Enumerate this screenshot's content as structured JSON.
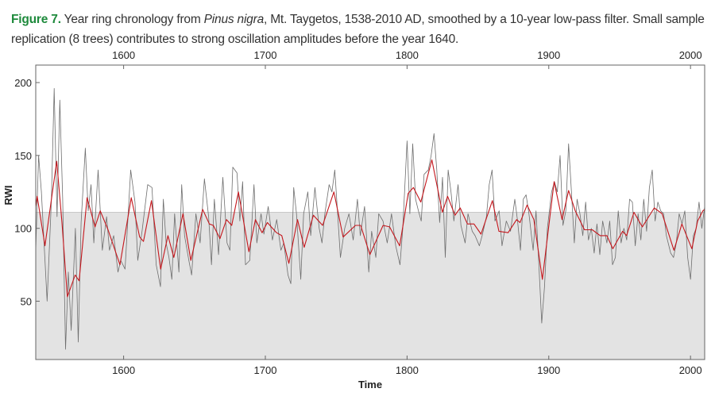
{
  "caption": {
    "figure_label": "Figure 7.",
    "text_before_species": " Year ring chronology from ",
    "species": "Pinus nigra",
    "text_after_species": ", Mt. Taygetos, 1538-2010 AD, smoothed by a 10-year low-pass filter. Small sample replication (8 trees) contributes to strong oscillation amplitudes before the year 1640."
  },
  "chart_data": {
    "type": "line",
    "title": "",
    "xlabel": "Time",
    "ylabel": "RWI",
    "xlim": [
      1538,
      2010
    ],
    "ylim": [
      10,
      212
    ],
    "x_ticks": [
      1600,
      1700,
      1800,
      1900,
      2000
    ],
    "x_tick_labels": [
      "1600",
      "1700",
      "1800",
      "1900",
      "2000"
    ],
    "y_ticks": [
      50,
      100,
      150,
      200
    ],
    "y_tick_labels": [
      "50",
      "100",
      "150",
      "200"
    ],
    "grid": false,
    "legend": "none",
    "band_upper_value": 111,
    "colors": {
      "raw": "#6e6e6e",
      "smoothed": "#c4161c",
      "band": "#e3e3e3",
      "caption_label": "#1e8a3c"
    },
    "series": [
      {
        "name": "raw",
        "x": [
          1538,
          1540,
          1542,
          1546,
          1549,
          1551,
          1553,
          1555,
          1557,
          1559,
          1561,
          1563,
          1566,
          1568,
          1570,
          1573,
          1575,
          1577,
          1579,
          1582,
          1585,
          1588,
          1590,
          1593,
          1596,
          1598,
          1601,
          1605,
          1608,
          1610,
          1613,
          1617,
          1620,
          1623,
          1626,
          1628,
          1630,
          1632,
          1634,
          1636,
          1639,
          1641,
          1643,
          1646,
          1648,
          1651,
          1654,
          1657,
          1660,
          1662,
          1664,
          1667,
          1670,
          1673,
          1675,
          1677,
          1680,
          1682,
          1684,
          1686,
          1689,
          1692,
          1694,
          1697,
          1699,
          1702,
          1705,
          1708,
          1711,
          1713,
          1716,
          1718,
          1720,
          1722,
          1725,
          1727,
          1730,
          1732,
          1735,
          1738,
          1740,
          1742,
          1745,
          1747,
          1749,
          1751,
          1753,
          1756,
          1759,
          1762,
          1765,
          1767,
          1770,
          1773,
          1775,
          1778,
          1780,
          1783,
          1786,
          1789,
          1792,
          1795,
          1797,
          1800,
          1802,
          1804,
          1806,
          1808,
          1810,
          1812,
          1815,
          1817,
          1819,
          1821,
          1823,
          1825,
          1827,
          1829,
          1831,
          1833,
          1836,
          1838,
          1841,
          1843,
          1846,
          1848,
          1851,
          1853,
          1856,
          1858,
          1860,
          1862,
          1865,
          1867,
          1870,
          1873,
          1876,
          1878,
          1880,
          1882,
          1884,
          1886,
          1889,
          1891,
          1893,
          1895,
          1897,
          1899,
          1902,
          1904,
          1906,
          1908,
          1910,
          1912,
          1914,
          1916,
          1918,
          1920,
          1922,
          1924,
          1926,
          1928,
          1930,
          1932,
          1934,
          1936,
          1938,
          1941,
          1943,
          1945,
          1947,
          1949,
          1951,
          1953,
          1955,
          1957,
          1959,
          1961,
          1963,
          1965,
          1967,
          1969,
          1971,
          1973,
          1975,
          1977,
          1979,
          1981,
          1983,
          1986,
          1988,
          1990,
          1992,
          1994,
          1996,
          1998,
          2000,
          2002,
          2004,
          2006,
          2008,
          2010
        ],
        "values": [
          85,
          150,
          125,
          50,
          118,
          196,
          108,
          188,
          120,
          17,
          70,
          30,
          100,
          22,
          104,
          155,
          112,
          130,
          90,
          140,
          85,
          108,
          85,
          95,
          70,
          78,
          72,
          140,
          118,
          78,
          98,
          130,
          128,
          75,
          60,
          120,
          90,
          80,
          65,
          110,
          70,
          130,
          95,
          78,
          68,
          110,
          90,
          134,
          108,
          75,
          120,
          82,
          135,
          90,
          85,
          142,
          138,
          105,
          132,
          75,
          78,
          130,
          90,
          110,
          96,
          115,
          92,
          106,
          85,
          90,
          68,
          62,
          128,
          110,
          65,
          110,
          125,
          95,
          128,
          100,
          90,
          110,
          130,
          125,
          140,
          110,
          80,
          100,
          110,
          92,
          120,
          95,
          115,
          70,
          98,
          80,
          110,
          105,
          90,
          110,
          88,
          75,
          100,
          160,
          110,
          158,
          120,
          112,
          105,
          137,
          140,
          150,
          165,
          140,
          104,
          135,
          80,
          140,
          125,
          105,
          130,
          102,
          90,
          110,
          98,
          95,
          88,
          95,
          108,
          130,
          140,
          105,
          112,
          88,
          105,
          98,
          120,
          105,
          85,
          120,
          123,
          110,
          85,
          112,
          75,
          35,
          60,
          100,
          125,
          132,
          125,
          150,
          102,
          112,
          158,
          125,
          90,
          120,
          110,
          95,
          118,
          92,
          100,
          83,
          103,
          82,
          105,
          90,
          105,
          75,
          80,
          112,
          90,
          100,
          92,
          120,
          118,
          88,
          110,
          92,
          120,
          98,
          128,
          140,
          105,
          118,
          112,
          110,
          95,
          83,
          80,
          90,
          110,
          103,
          112,
          80,
          65,
          95,
          100,
          118,
          100,
          115
        ]
      },
      {
        "name": "smoothed (10-year low-pass)",
        "x": [
          1538,
          1539,
          1544.5,
          1552.8,
          1556.5,
          1560.3,
          1565.8,
          1568.6,
          1574.2,
          1579.8,
          1583.5,
          1589,
          1597.4,
          1605.4,
          1611.3,
          1614,
          1619.6,
          1626.1,
          1631.3,
          1635.4,
          1641.9,
          1647.4,
          1655.8,
          1660.5,
          1663.3,
          1668,
          1672.6,
          1676.3,
          1681,
          1688.4,
          1693,
          1697.7,
          1701.4,
          1707.9,
          1711.6,
          1716.6,
          1722.7,
          1727.4,
          1733.9,
          1740.4,
          1748.4,
          1754.9,
          1763.6,
          1767.3,
          1773.8,
          1783.1,
          1787.7,
          1794.8,
          1800.8,
          1804.5,
          1809.7,
          1817.5,
          1824.9,
          1828.6,
          1833.8,
          1837.5,
          1842.6,
          1847.2,
          1852.2,
          1860.2,
          1864.8,
          1871.3,
          1877.3,
          1879.7,
          1884.7,
          1889.5,
          1895.5,
          1903.8,
          1909.4,
          1914,
          1918.7,
          1925.2,
          1930.7,
          1936.3,
          1941,
          1945.2,
          1952.1,
          1954.9,
          1960.1,
          1966,
          1974.4,
          1980,
          1988.3,
          1993.9,
          2001,
          2005,
          2008.7,
          2010
        ],
        "values": [
          115,
          122,
          88,
          146,
          104,
          53,
          68,
          64,
          121,
          101,
          112,
          99,
          75,
          121,
          94,
          91,
          119,
          72,
          95,
          80,
          110,
          78,
          113,
          103,
          102,
          93,
          106,
          102,
          125,
          84,
          106,
          97,
          104,
          97,
          95,
          76,
          106,
          87,
          109,
          102,
          125,
          94,
          102,
          102,
          82,
          102,
          101,
          88,
          124,
          128,
          118,
          147,
          111,
          122,
          109,
          114,
          103,
          103,
          96,
          119,
          98,
          97,
          106,
          104,
          116,
          106,
          65,
          132,
          106,
          126,
          112,
          99,
          99,
          95,
          95,
          86,
          98,
          95,
          111,
          101,
          114,
          110,
          85,
          103,
          86,
          105,
          112,
          113
        ]
      }
    ]
  }
}
